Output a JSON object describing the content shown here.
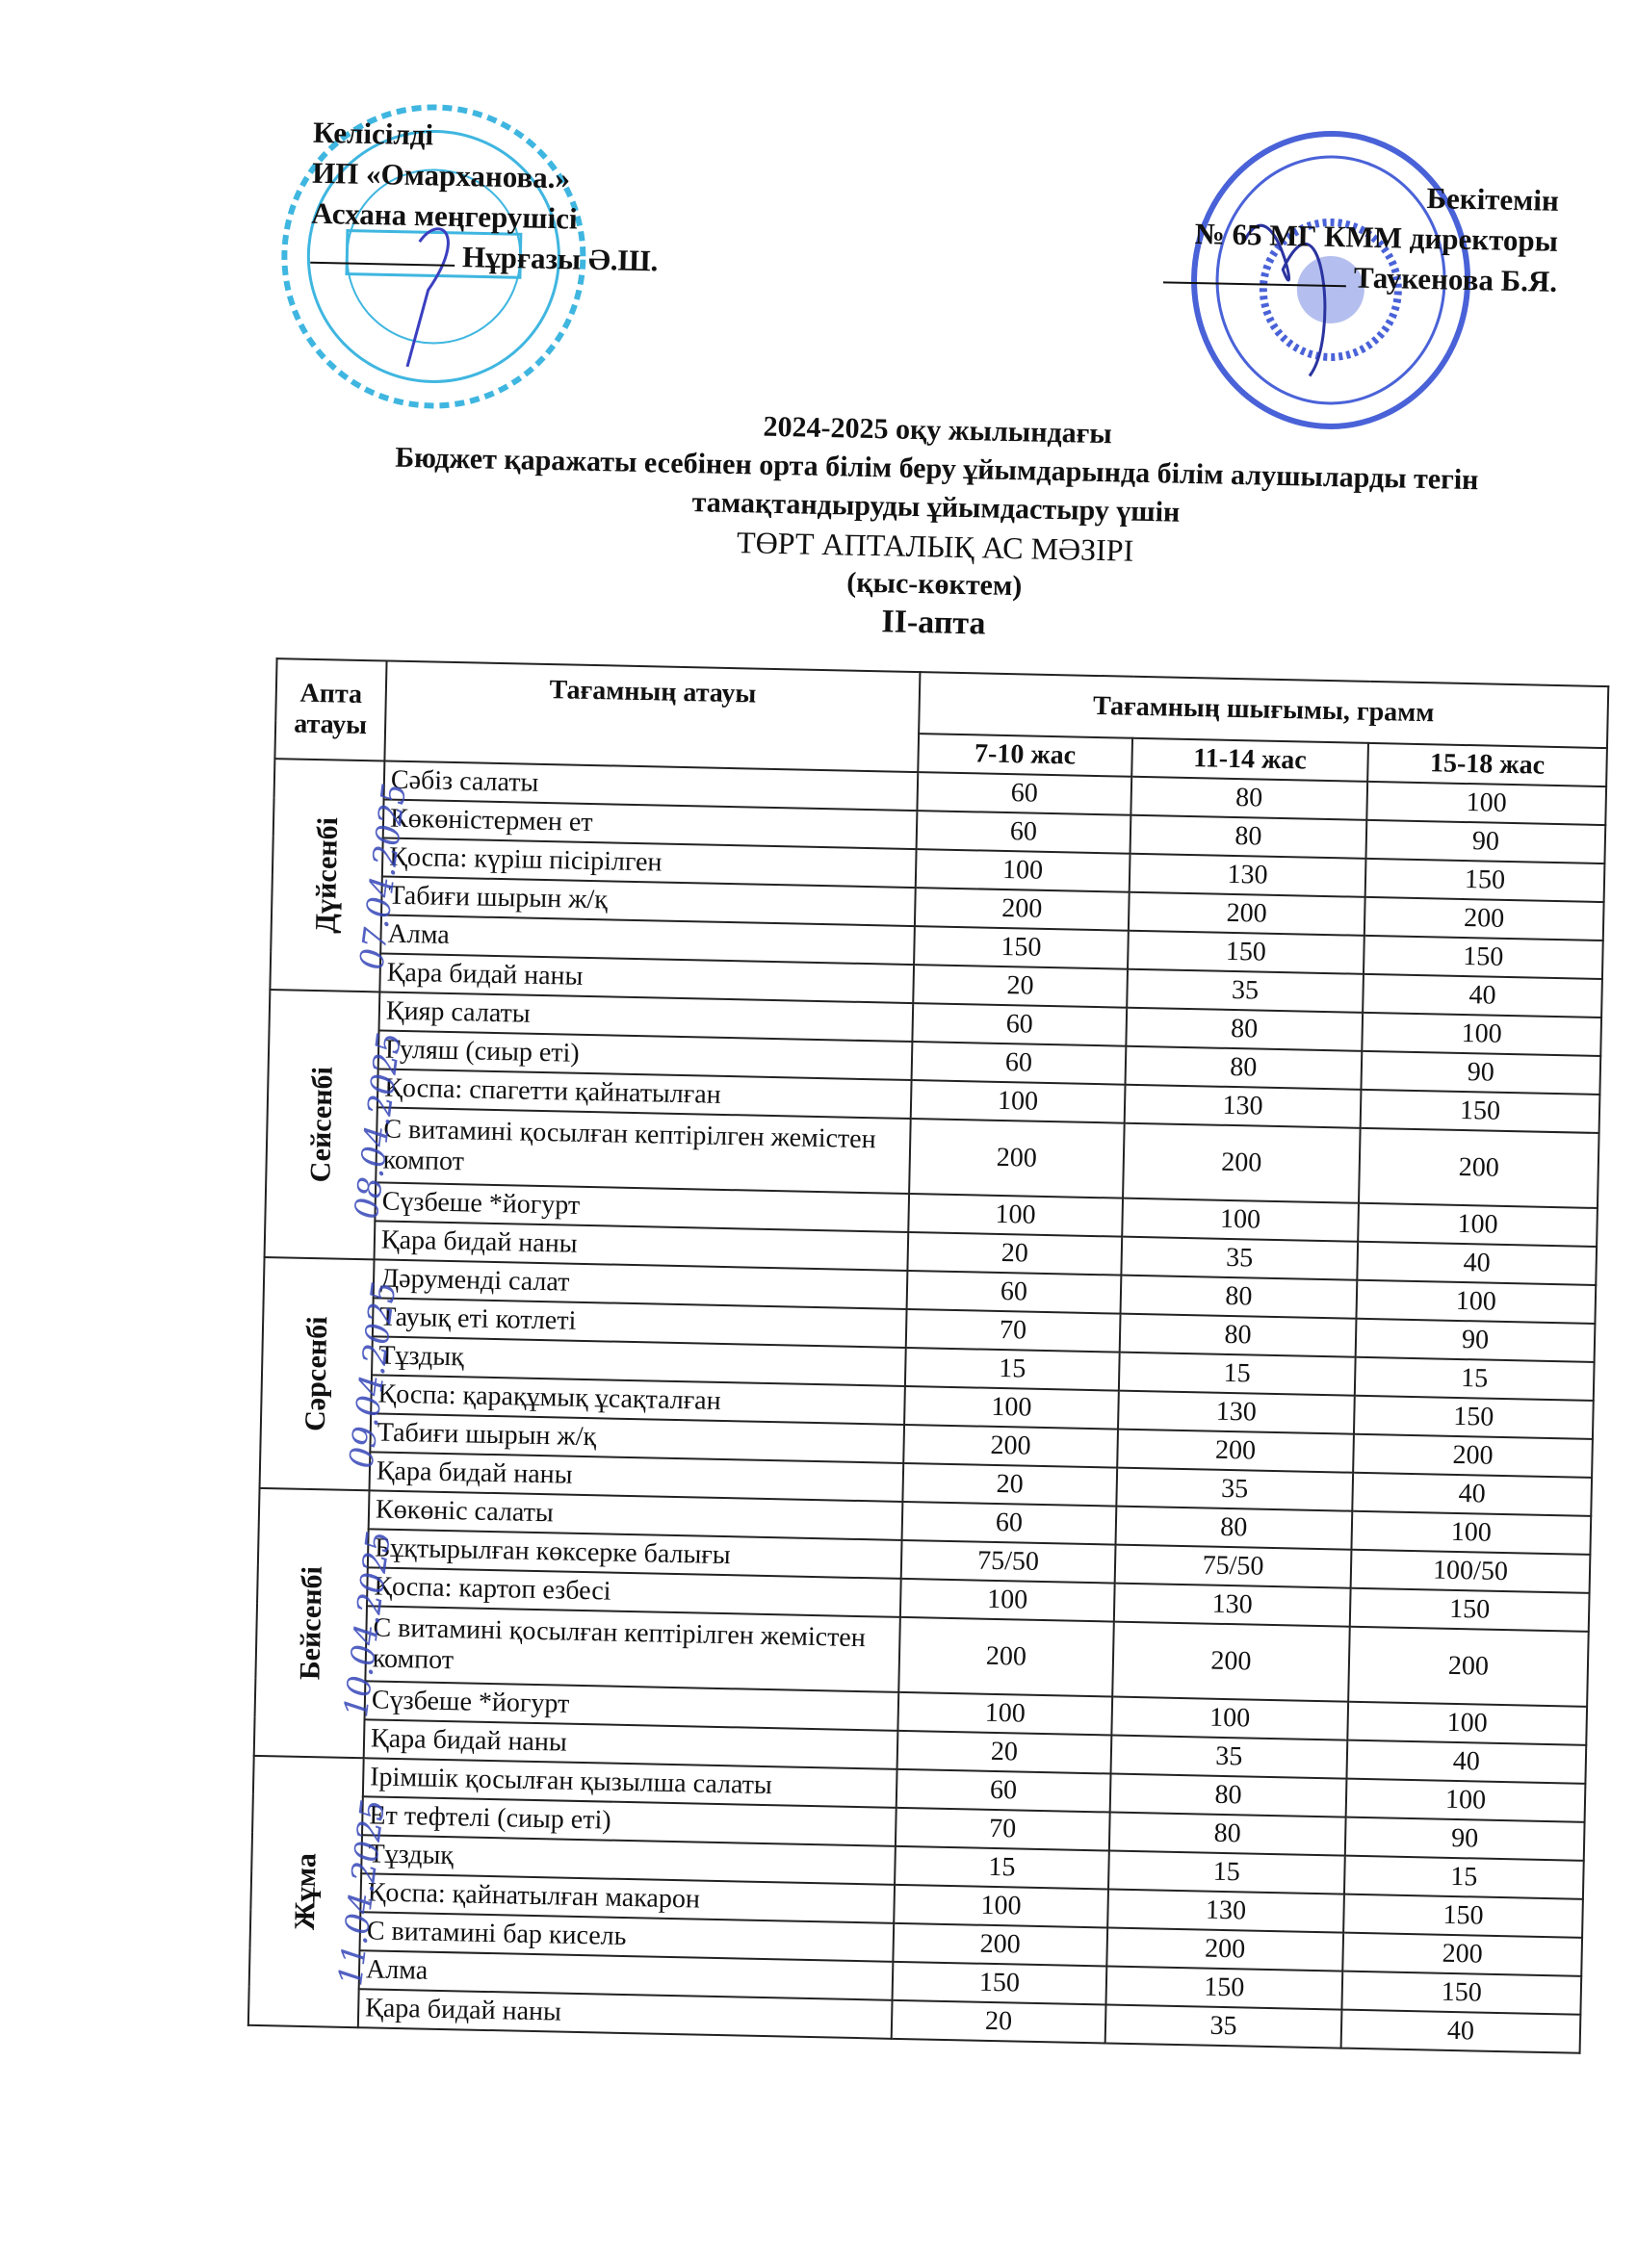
{
  "approval_left": {
    "line1": "Келісілді",
    "line2": "ИП «Омарханова.»",
    "line3": "Асхана меңгерушісі",
    "signatory": "Нұрғазы  Ә.Ш."
  },
  "approval_right": {
    "line1": "Бекітемін",
    "line2": "№ 65 МГ КММ директоры",
    "signatory": "Таукенова Б.Я."
  },
  "title": {
    "line1": "2024-2025 оқу жылындағы",
    "line2": "Бюджет қаражаты есебінен орта білім беру ұйымдарында білім алушыларды тегін",
    "line3": "тамақтандыруды ұйымдастыру үшін",
    "line4": "ТӨРТ АПТАЛЫҚ АС МӘЗІРІ",
    "season": "(қыс-көктем)",
    "week": "ІІ-апта"
  },
  "stamp_colors": {
    "left": "#3fb6e0",
    "right": "#4a62d8"
  },
  "table": {
    "headers": {
      "day": "Апта атауы",
      "name": "Тағамның атауы",
      "yield": "Тағамның шығымы, грамм",
      "ages": [
        "7-10 жас",
        "11-14 жас",
        "15-18 жас"
      ]
    },
    "days": [
      {
        "day": "Дүйсенбі",
        "date": "07.04.2025",
        "items": [
          {
            "name": "Сәбіз салаты",
            "v": [
              "60",
              "80",
              "100"
            ]
          },
          {
            "name": "Көкөністермен ет",
            "v": [
              "60",
              "80",
              "90"
            ]
          },
          {
            "name": "Қоспа:  күріш пісірілген",
            "v": [
              "100",
              "130",
              "150"
            ]
          },
          {
            "name": "Табиғи шырын ж/қ",
            "v": [
              "200",
              "200",
              "200"
            ]
          },
          {
            "name": "Алма",
            "v": [
              "150",
              "150",
              "150"
            ]
          },
          {
            "name": "Қара бидай наны",
            "v": [
              "20",
              "35",
              "40"
            ]
          }
        ]
      },
      {
        "day": "Сейсенбі",
        "date": "08.04.2025",
        "items": [
          {
            "name": "Қияр салаты",
            "v": [
              "60",
              "80",
              "100"
            ]
          },
          {
            "name": "Гуляш (сиыр еті)",
            "v": [
              "60",
              "80",
              "90"
            ]
          },
          {
            "name": "Қоспа: спагетти қайнатылған",
            "v": [
              "100",
              "130",
              "150"
            ]
          },
          {
            "name": "С витамині қосылған кептірілген жемістен компот",
            "v": [
              "200",
              "200",
              "200"
            ],
            "tall": true
          },
          {
            "name": "Сүзбеше *йогурт",
            "v": [
              "100",
              "100",
              "100"
            ]
          },
          {
            "name": "Қара бидай наны",
            "v": [
              "20",
              "35",
              "40"
            ]
          }
        ]
      },
      {
        "day": "Сәрсенбі",
        "date": "09.04.2025",
        "items": [
          {
            "name": "Дәруменді салат",
            "v": [
              "60",
              "80",
              "100"
            ]
          },
          {
            "name": "Тауық еті  котлеті",
            "v": [
              "70",
              "80",
              "90"
            ]
          },
          {
            "name": "Тұздық",
            "v": [
              "15",
              "15",
              "15"
            ]
          },
          {
            "name": "Қоспа:  қарақұмық ұсақталған",
            "v": [
              "100",
              "130",
              "150"
            ]
          },
          {
            "name": "Табиғи шырын ж/қ",
            "v": [
              "200",
              "200",
              "200"
            ]
          },
          {
            "name": "Қара бидай наны",
            "v": [
              "20",
              "35",
              "40"
            ]
          }
        ]
      },
      {
        "day": "Бейсенбі",
        "date": "10.04.2025",
        "items": [
          {
            "name": "Көкөніс салаты",
            "v": [
              "60",
              "80",
              "100"
            ]
          },
          {
            "name": "Бұқтырылған  көксерке балығы",
            "v": [
              "75/50",
              "75/50",
              "100/50"
            ]
          },
          {
            "name": "Қоспа: картоп езбесі",
            "v": [
              "100",
              "130",
              "150"
            ]
          },
          {
            "name": "С витамині қосылған кептірілген жемістен компот",
            "v": [
              "200",
              "200",
              "200"
            ],
            "tall": true
          },
          {
            "name": "Сүзбеше *йогурт",
            "v": [
              "100",
              "100",
              "100"
            ]
          },
          {
            "name": "Қара бидай наны",
            "v": [
              "20",
              "35",
              "40"
            ]
          }
        ]
      },
      {
        "day": "Жұма",
        "date": "11.04.2025",
        "items": [
          {
            "name": "Ірімшік қосылған қызылша салаты",
            "v": [
              "60",
              "80",
              "100"
            ]
          },
          {
            "name": "Ет тефтелі (сиыр еті)",
            "v": [
              "70",
              "80",
              "90"
            ]
          },
          {
            "name": "Тұздық",
            "v": [
              "15",
              "15",
              "15"
            ]
          },
          {
            "name": "Қоспа:   қайнатылған макарон",
            "v": [
              "100",
              "130",
              "150"
            ]
          },
          {
            "name": "С витамині бар кисель",
            "v": [
              "200",
              "200",
              "200"
            ]
          },
          {
            "name": "Алма",
            "v": [
              "150",
              "150",
              "150"
            ]
          },
          {
            "name": "Қара бидай наны",
            "v": [
              "20",
              "35",
              "40"
            ]
          }
        ]
      }
    ]
  }
}
